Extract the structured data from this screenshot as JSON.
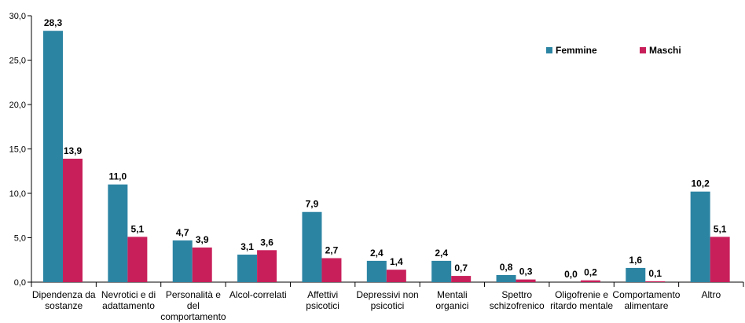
{
  "chart_data": {
    "type": "bar",
    "categories": [
      [
        "Dipendenza da",
        "sostanze"
      ],
      [
        "Nevrotici e di",
        "adattamento"
      ],
      [
        "Personalità e",
        "del",
        "comportamento"
      ],
      [
        "Alcol-correlati"
      ],
      [
        "Affettivi",
        "psicotici"
      ],
      [
        "Depressivi non",
        "psicotici"
      ],
      [
        "Mentali",
        "organici"
      ],
      [
        "Spettro",
        "schizofrenico"
      ],
      [
        "Oligofrenie e",
        "ritardo mentale"
      ],
      [
        "Comportamento",
        "alimentare"
      ],
      [
        "Altro"
      ]
    ],
    "series": [
      {
        "name": "Femmine",
        "color": "#2C84A3",
        "values": [
          28.3,
          11.0,
          4.7,
          3.1,
          7.9,
          2.4,
          2.4,
          0.8,
          0.0,
          1.6,
          10.2
        ],
        "labels": [
          "28,3",
          "11,0",
          "4,7",
          "3,1",
          "7,9",
          "2,4",
          "2,4",
          "0,8",
          "0,0",
          "1,6",
          "10,2"
        ]
      },
      {
        "name": "Maschi",
        "color": "#C81F5A",
        "values": [
          13.9,
          5.1,
          3.9,
          3.6,
          2.7,
          1.4,
          0.7,
          0.3,
          0.2,
          0.1,
          5.1
        ],
        "labels": [
          "13,9",
          "5,1",
          "3,9",
          "3,6",
          "2,7",
          "1,4",
          "0,7",
          "0,3",
          "0,2",
          "0,1",
          "5,1"
        ]
      }
    ],
    "yticks": [
      0,
      5,
      10,
      15,
      20,
      25,
      30
    ],
    "ytick_labels": [
      "0,0",
      "5,0",
      "10,0",
      "15,0",
      "20,0",
      "25,0",
      "30,0"
    ],
    "ylim": [
      0,
      30
    ],
    "grid": false,
    "legend": "top-right",
    "title": "",
    "xlabel": "",
    "ylabel": ""
  }
}
